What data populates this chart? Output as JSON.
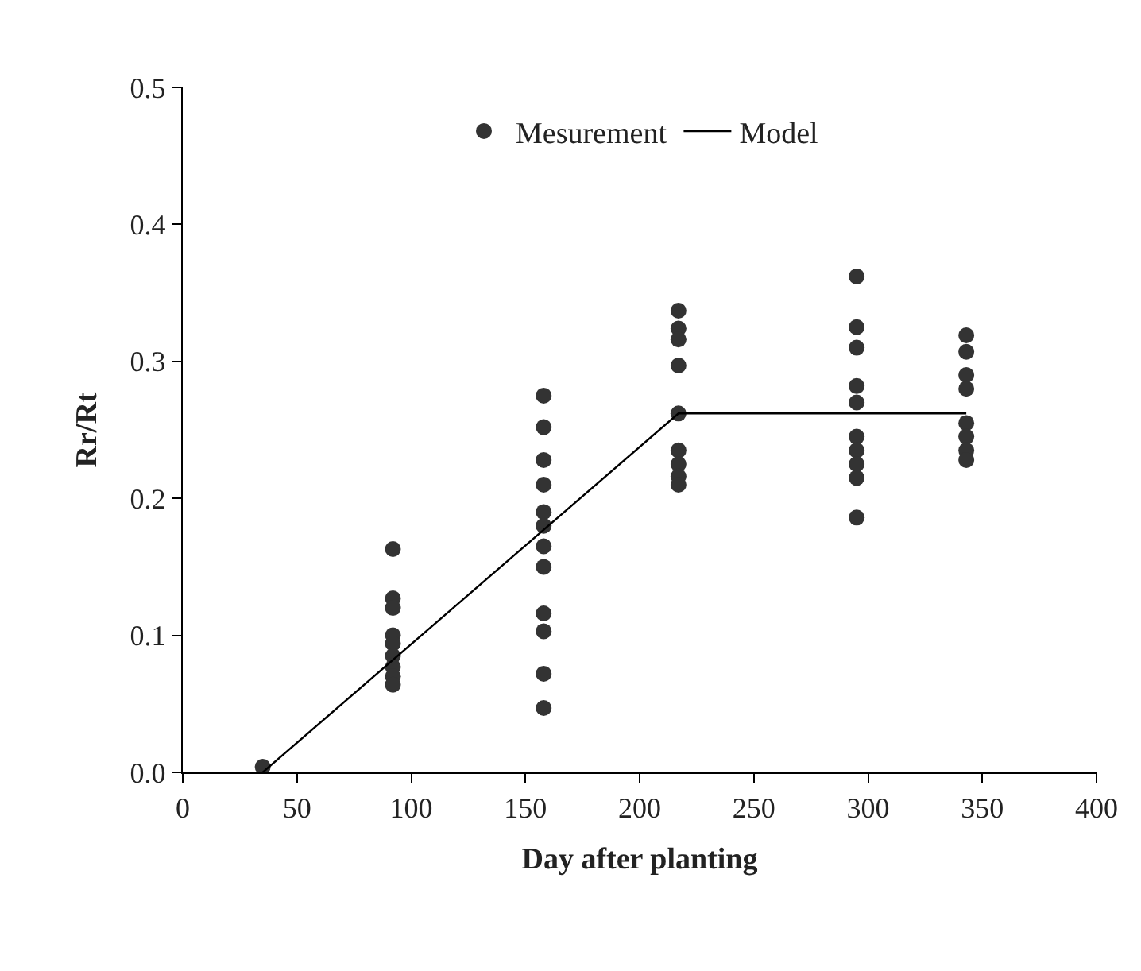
{
  "chart_data": {
    "type": "scatter",
    "xlabel": "Day after planting",
    "ylabel": "Rr/Rt",
    "xlim": [
      0,
      400
    ],
    "xticks": [
      0,
      50,
      100,
      150,
      200,
      250,
      300,
      350,
      400
    ],
    "ylim": [
      0,
      0.5
    ],
    "yticks": [
      {
        "value": 0,
        "label": "0.0"
      },
      0.1,
      0.2,
      0.3,
      0.4,
      0.5
    ],
    "legend": "top",
    "series": [
      {
        "name": "Mesurement",
        "marker": "circle",
        "color": "#333333",
        "x": [
          35,
          92,
          92,
          92,
          92,
          92,
          92,
          92,
          92,
          92,
          158,
          158,
          158,
          158,
          158,
          158,
          158,
          158,
          158,
          158,
          158,
          158,
          217,
          217,
          217,
          217,
          217,
          217,
          217,
          217,
          217,
          295,
          295,
          295,
          295,
          295,
          295,
          295,
          295,
          295,
          295,
          343,
          343,
          343,
          343,
          343,
          343,
          343,
          343
        ],
        "values": [
          0.004,
          0.163,
          0.127,
          0.12,
          0.1,
          0.094,
          0.085,
          0.077,
          0.07,
          0.064,
          0.275,
          0.252,
          0.228,
          0.21,
          0.19,
          0.18,
          0.165,
          0.15,
          0.116,
          0.103,
          0.072,
          0.047,
          0.337,
          0.324,
          0.316,
          0.297,
          0.262,
          0.235,
          0.225,
          0.216,
          0.21,
          0.362,
          0.325,
          0.31,
          0.282,
          0.27,
          0.245,
          0.235,
          0.225,
          0.215,
          0.186,
          0.319,
          0.307,
          0.29,
          0.28,
          0.255,
          0.245,
          0.235,
          0.228
        ]
      },
      {
        "name": "Model",
        "type": "line",
        "marker": "none",
        "color": "#000000",
        "line_style": "solid",
        "x": [
          35,
          217,
          343
        ],
        "values": [
          0,
          0.262,
          0.262
        ]
      }
    ]
  }
}
